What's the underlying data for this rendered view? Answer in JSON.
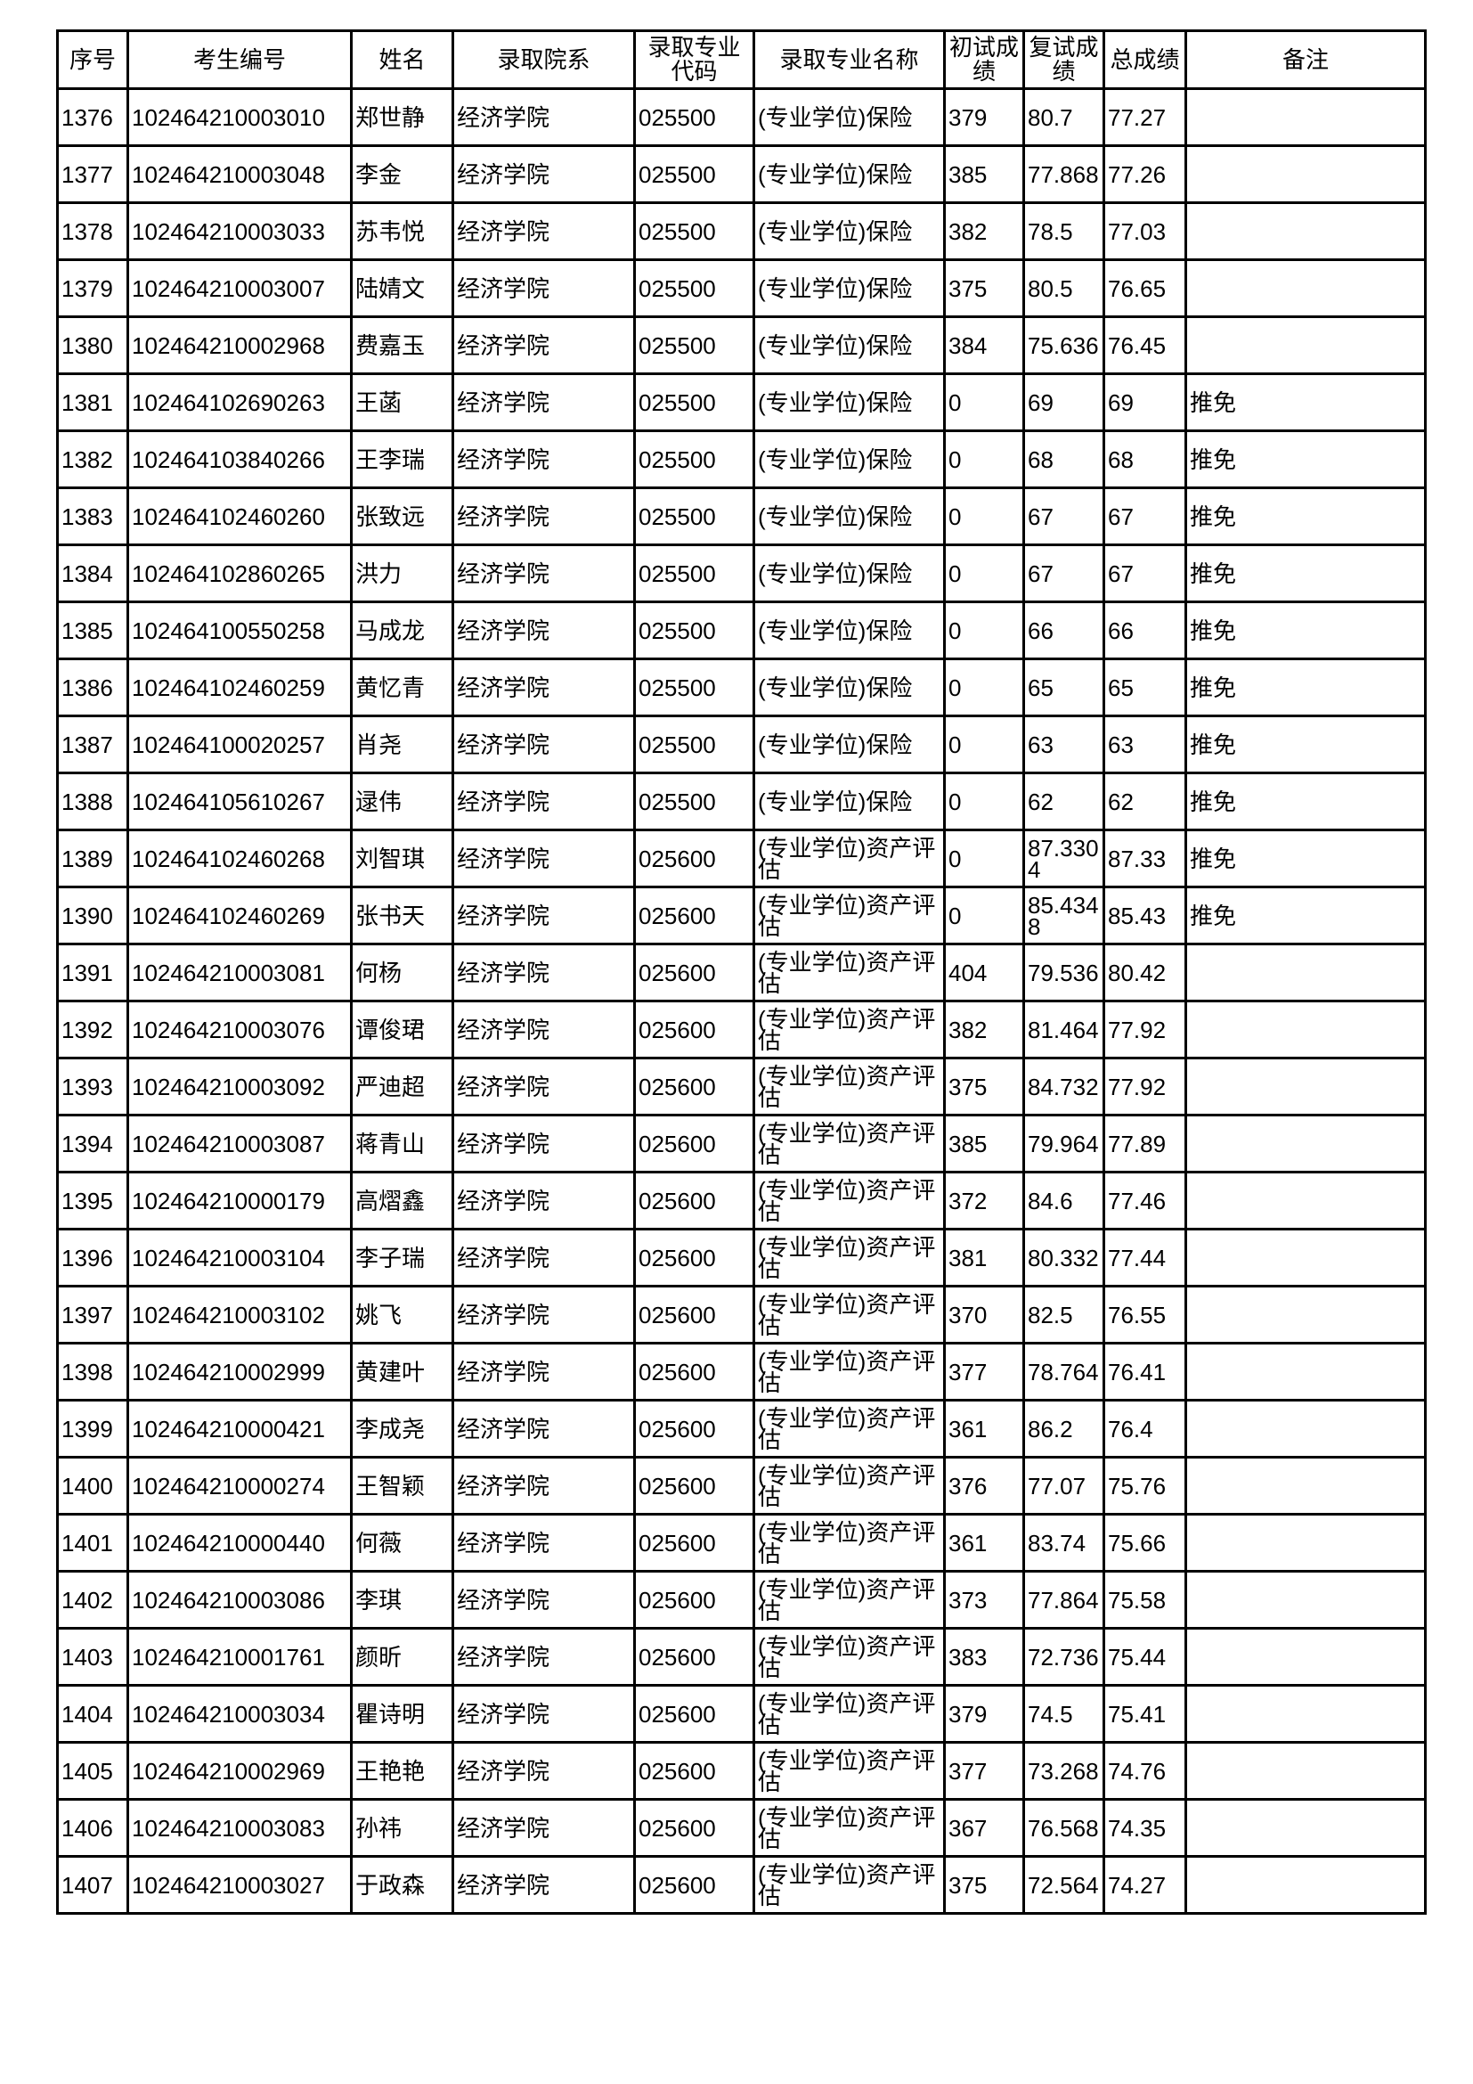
{
  "table": {
    "headers": [
      "序号",
      "考生编号",
      "姓名",
      "录取院系",
      "录取专业代码",
      "录取专业名称",
      "初试成绩",
      "复试成绩",
      "总成绩",
      "备注"
    ],
    "rows": [
      [
        "1376",
        "102464210003010",
        "郑世静",
        "经济学院",
        "025500",
        "(专业学位)保险",
        "379",
        "80.7",
        "77.27",
        ""
      ],
      [
        "1377",
        "102464210003048",
        "李金",
        "经济学院",
        "025500",
        "(专业学位)保险",
        "385",
        "77.868",
        "77.26",
        ""
      ],
      [
        "1378",
        "102464210003033",
        "苏韦悦",
        "经济学院",
        "025500",
        "(专业学位)保险",
        "382",
        "78.5",
        "77.03",
        ""
      ],
      [
        "1379",
        "102464210003007",
        "陆婧文",
        "经济学院",
        "025500",
        "(专业学位)保险",
        "375",
        "80.5",
        "76.65",
        ""
      ],
      [
        "1380",
        "102464210002968",
        "费嘉玉",
        "经济学院",
        "025500",
        "(专业学位)保险",
        "384",
        "75.636",
        "76.45",
        ""
      ],
      [
        "1381",
        "102464102690263",
        "王菡",
        "经济学院",
        "025500",
        "(专业学位)保险",
        "0",
        "69",
        "69",
        "推免"
      ],
      [
        "1382",
        "102464103840266",
        "王李瑞",
        "经济学院",
        "025500",
        "(专业学位)保险",
        "0",
        "68",
        "68",
        "推免"
      ],
      [
        "1383",
        "102464102460260",
        "张致远",
        "经济学院",
        "025500",
        "(专业学位)保险",
        "0",
        "67",
        "67",
        "推免"
      ],
      [
        "1384",
        "102464102860265",
        "洪力",
        "经济学院",
        "025500",
        "(专业学位)保险",
        "0",
        "67",
        "67",
        "推免"
      ],
      [
        "1385",
        "102464100550258",
        "马成龙",
        "经济学院",
        "025500",
        "(专业学位)保险",
        "0",
        "66",
        "66",
        "推免"
      ],
      [
        "1386",
        "102464102460259",
        "黄忆青",
        "经济学院",
        "025500",
        "(专业学位)保险",
        "0",
        "65",
        "65",
        "推免"
      ],
      [
        "1387",
        "102464100020257",
        "肖尧",
        "经济学院",
        "025500",
        "(专业学位)保险",
        "0",
        "63",
        "63",
        "推免"
      ],
      [
        "1388",
        "102464105610267",
        "逯伟",
        "经济学院",
        "025500",
        "(专业学位)保险",
        "0",
        "62",
        "62",
        "推免"
      ],
      [
        "1389",
        "102464102460268",
        "刘智琪",
        "经济学院",
        "025600",
        "(专业学位)资产评估",
        "0",
        "87.3304",
        "87.33",
        "推免"
      ],
      [
        "1390",
        "102464102460269",
        "张书天",
        "经济学院",
        "025600",
        "(专业学位)资产评估",
        "0",
        "85.4348",
        "85.43",
        "推免"
      ],
      [
        "1391",
        "102464210003081",
        "何杨",
        "经济学院",
        "025600",
        "(专业学位)资产评估",
        "404",
        "79.536",
        "80.42",
        ""
      ],
      [
        "1392",
        "102464210003076",
        "谭俊珺",
        "经济学院",
        "025600",
        "(专业学位)资产评估",
        "382",
        "81.464",
        "77.92",
        ""
      ],
      [
        "1393",
        "102464210003092",
        "严迪超",
        "经济学院",
        "025600",
        "(专业学位)资产评估",
        "375",
        "84.732",
        "77.92",
        ""
      ],
      [
        "1394",
        "102464210003087",
        "蒋青山",
        "经济学院",
        "025600",
        "(专业学位)资产评估",
        "385",
        "79.964",
        "77.89",
        ""
      ],
      [
        "1395",
        "102464210000179",
        "高熠鑫",
        "经济学院",
        "025600",
        "(专业学位)资产评估",
        "372",
        "84.6",
        "77.46",
        ""
      ],
      [
        "1396",
        "102464210003104",
        "李子瑞",
        "经济学院",
        "025600",
        "(专业学位)资产评估",
        "381",
        "80.332",
        "77.44",
        ""
      ],
      [
        "1397",
        "102464210003102",
        "姚飞",
        "经济学院",
        "025600",
        "(专业学位)资产评估",
        "370",
        "82.5",
        "76.55",
        ""
      ],
      [
        "1398",
        "102464210002999",
        "黄建叶",
        "经济学院",
        "025600",
        "(专业学位)资产评估",
        "377",
        "78.764",
        "76.41",
        ""
      ],
      [
        "1399",
        "102464210000421",
        "李成尧",
        "经济学院",
        "025600",
        "(专业学位)资产评估",
        "361",
        "86.2",
        "76.4",
        ""
      ],
      [
        "1400",
        "102464210000274",
        "王智颖",
        "经济学院",
        "025600",
        "(专业学位)资产评估",
        "376",
        "77.07",
        "75.76",
        ""
      ],
      [
        "1401",
        "102464210000440",
        "何薇",
        "经济学院",
        "025600",
        "(专业学位)资产评估",
        "361",
        "83.74",
        "75.66",
        ""
      ],
      [
        "1402",
        "102464210003086",
        "李琪",
        "经济学院",
        "025600",
        "(专业学位)资产评估",
        "373",
        "77.864",
        "75.58",
        ""
      ],
      [
        "1403",
        "102464210001761",
        "颜昕",
        "经济学院",
        "025600",
        "(专业学位)资产评估",
        "383",
        "72.736",
        "75.44",
        ""
      ],
      [
        "1404",
        "102464210003034",
        "瞿诗明",
        "经济学院",
        "025600",
        "(专业学位)资产评估",
        "379",
        "74.5",
        "75.41",
        ""
      ],
      [
        "1405",
        "102464210002969",
        "王艳艳",
        "经济学院",
        "025600",
        "(专业学位)资产评估",
        "377",
        "73.268",
        "74.76",
        ""
      ],
      [
        "1406",
        "102464210003083",
        "孙祎",
        "经济学院",
        "025600",
        "(专业学位)资产评估",
        "367",
        "76.568",
        "74.35",
        ""
      ],
      [
        "1407",
        "102464210003027",
        "于政森",
        "经济学院",
        "025600",
        "(专业学位)资产评估",
        "375",
        "72.564",
        "74.27",
        ""
      ]
    ]
  }
}
